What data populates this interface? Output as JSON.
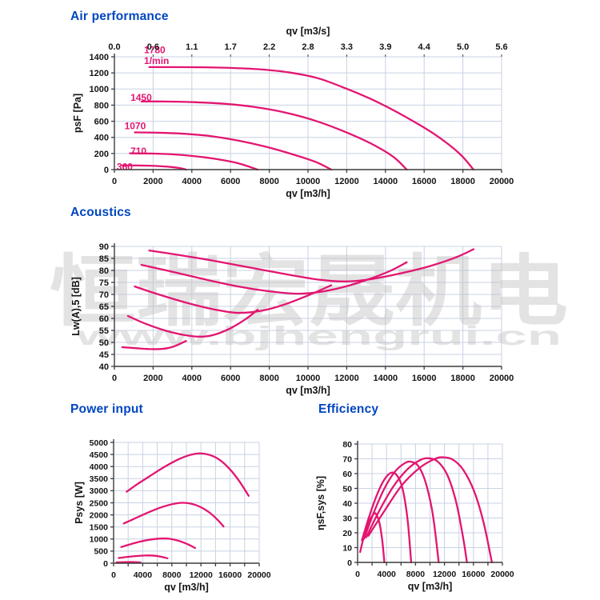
{
  "page": {
    "background": "#ffffff"
  },
  "colors": {
    "title_blue": "#0046c0",
    "curve_pink": "#e31570",
    "grid": "#c8d2e4",
    "axis": "#3c3c3c",
    "text": "#141414",
    "watermark_gray": "#c2c2c2"
  },
  "watermark": {
    "cjk_text": "恒瑞宏晟机电",
    "url_text": "www.bjhengrui.cn"
  },
  "chart_data": [
    {
      "id": "air",
      "type": "line",
      "title": "Air performance",
      "xlabel": "qv [m3/h]",
      "x2label": "qv [m3/s]",
      "ylabel": "psF [Pa]",
      "xlim": [
        0,
        20000
      ],
      "ylim": [
        0,
        1400
      ],
      "ytick_step": 200,
      "xgrid_step": 2000,
      "xlabel_step": 2000,
      "x2labels": [
        "0.0",
        "0.6",
        "1.1",
        "1.7",
        "2.2",
        "2.8",
        "3.3",
        "3.9",
        "4.4",
        "5.0",
        "5.6"
      ],
      "grid": true,
      "series": [
        {
          "name": "1780",
          "points": [
            [
              1800,
              1272
            ],
            [
              3000,
              1272
            ],
            [
              4500,
              1270
            ],
            [
              6000,
              1262
            ],
            [
              7500,
              1245
            ],
            [
              9000,
              1207
            ],
            [
              10500,
              1135
            ],
            [
              12000,
              1003
            ],
            [
              13500,
              848
            ],
            [
              15000,
              660
            ],
            [
              16500,
              445
            ],
            [
              17800,
              205
            ],
            [
              18550,
              0
            ]
          ]
        },
        {
          "name": "1450",
          "points": [
            [
              1400,
              845
            ],
            [
              2600,
              845
            ],
            [
              4200,
              836
            ],
            [
              5800,
              815
            ],
            [
              7200,
              778
            ],
            [
              8700,
              715
            ],
            [
              10200,
              620
            ],
            [
              11700,
              490
            ],
            [
              13200,
              330
            ],
            [
              14400,
              160
            ],
            [
              15100,
              0
            ]
          ]
        },
        {
          "name": "1070",
          "points": [
            [
              1050,
              462
            ],
            [
              2200,
              458
            ],
            [
              3600,
              445
            ],
            [
              5000,
              415
            ],
            [
              6400,
              360
            ],
            [
              7800,
              285
            ],
            [
              9200,
              190
            ],
            [
              10400,
              95
            ],
            [
              11200,
              0
            ]
          ]
        },
        {
          "name": "710",
          "points": [
            [
              800,
              202
            ],
            [
              1800,
              200
            ],
            [
              3000,
              190
            ],
            [
              4200,
              165
            ],
            [
              5300,
              130
            ],
            [
              6400,
              78
            ],
            [
              7400,
              0
            ]
          ]
        },
        {
          "name": "360",
          "points": [
            [
              400,
              52
            ],
            [
              1300,
              51
            ],
            [
              2100,
              46
            ],
            [
              2900,
              33
            ],
            [
              3400,
              17
            ],
            [
              3700,
              0
            ]
          ]
        }
      ],
      "curve_labels": [
        {
          "text": "1780",
          "x": 1530,
          "y": 1485
        },
        {
          "text": "1/min",
          "x": 1530,
          "y": 1350
        },
        {
          "text": "1450",
          "x": 830,
          "y": 895
        },
        {
          "text": "1070",
          "x": 520,
          "y": 540
        },
        {
          "text": "710",
          "x": 830,
          "y": 230
        },
        {
          "text": "360",
          "x": 120,
          "y": 35
        }
      ]
    },
    {
      "id": "ac",
      "type": "line",
      "title": "Acoustics",
      "xlabel": "qv [m3/h]",
      "ylabel": "Lw(A),5 [dB]",
      "xlim": [
        0,
        20000
      ],
      "ylim": [
        40,
        90
      ],
      "ytick_step": 5,
      "xgrid_step": 2000,
      "xlabel_step": 2000,
      "grid": true,
      "watermark": true,
      "series": [
        {
          "name": "1780",
          "points": [
            [
              1800,
              88.3
            ],
            [
              3200,
              86.6
            ],
            [
              5000,
              84.2
            ],
            [
              7000,
              81.2
            ],
            [
              9000,
              78.2
            ],
            [
              10600,
              76.1
            ],
            [
              11900,
              75.4
            ],
            [
              13200,
              76.3
            ],
            [
              14800,
              78.8
            ],
            [
              16300,
              81.8
            ],
            [
              17600,
              85.3
            ],
            [
              18550,
              88.8
            ]
          ]
        },
        {
          "name": "1450",
          "points": [
            [
              1400,
              82.3
            ],
            [
              2800,
              79.8
            ],
            [
              4600,
              76.4
            ],
            [
              6400,
              73.3
            ],
            [
              8000,
              71.3
            ],
            [
              9400,
              70.3
            ],
            [
              10600,
              71.0
            ],
            [
              11900,
              73.2
            ],
            [
              13200,
              76.5
            ],
            [
              14300,
              80.0
            ],
            [
              15100,
              83.4
            ]
          ]
        },
        {
          "name": "1070",
          "points": [
            [
              1050,
              73.3
            ],
            [
              2200,
              70.2
            ],
            [
              3600,
              66.8
            ],
            [
              5000,
              64.0
            ],
            [
              6200,
              62.4
            ],
            [
              7100,
              62.6
            ],
            [
              8000,
              63.9
            ],
            [
              9000,
              66.4
            ],
            [
              10100,
              69.9
            ],
            [
              11200,
              73.8
            ]
          ]
        },
        {
          "name": "710",
          "points": [
            [
              700,
              61.0
            ],
            [
              1600,
              57.8
            ],
            [
              2600,
              55.0
            ],
            [
              3600,
              53.1
            ],
            [
              4500,
              52.4
            ],
            [
              5200,
              53.3
            ],
            [
              6000,
              55.9
            ],
            [
              6800,
              59.8
            ],
            [
              7400,
              63.6
            ]
          ]
        },
        {
          "name": "360",
          "points": [
            [
              400,
              48.0
            ],
            [
              1100,
              47.6
            ],
            [
              1900,
              47.2
            ],
            [
              2600,
              47.4
            ],
            [
              3100,
              48.4
            ],
            [
              3700,
              50.6
            ]
          ]
        }
      ]
    },
    {
      "id": "power",
      "type": "line",
      "title": "Power input",
      "xlabel": "qv [m3/h]",
      "ylabel": "Psys [W]",
      "xlim": [
        0,
        20000
      ],
      "ylim": [
        0,
        5000
      ],
      "ytick_step": 500,
      "xgrid_step": 2000,
      "xlabel_step": 4000,
      "grid": true,
      "series": [
        {
          "name": "1780",
          "points": [
            [
              1800,
              2960
            ],
            [
              3200,
              3260
            ],
            [
              5000,
              3610
            ],
            [
              7000,
              3990
            ],
            [
              9000,
              4310
            ],
            [
              10500,
              4480
            ],
            [
              11800,
              4545
            ],
            [
              13200,
              4480
            ],
            [
              14600,
              4270
            ],
            [
              16000,
              3880
            ],
            [
              17300,
              3380
            ],
            [
              18550,
              2790
            ]
          ]
        },
        {
          "name": "1450",
          "points": [
            [
              1400,
              1645
            ],
            [
              2800,
              1835
            ],
            [
              4600,
              2080
            ],
            [
              6400,
              2300
            ],
            [
              8000,
              2440
            ],
            [
              9400,
              2500
            ],
            [
              10600,
              2465
            ],
            [
              11900,
              2330
            ],
            [
              13200,
              2090
            ],
            [
              14300,
              1790
            ],
            [
              15100,
              1520
            ]
          ]
        },
        {
          "name": "1070",
          "points": [
            [
              1050,
              670
            ],
            [
              2200,
              775
            ],
            [
              3600,
              890
            ],
            [
              5000,
              975
            ],
            [
              6400,
              1020
            ],
            [
              7600,
              1015
            ],
            [
              8800,
              940
            ],
            [
              10000,
              810
            ],
            [
              11200,
              630
            ]
          ]
        },
        {
          "name": "710",
          "points": [
            [
              700,
              215
            ],
            [
              1800,
              258
            ],
            [
              3000,
              293
            ],
            [
              4300,
              318
            ],
            [
              5300,
              316
            ],
            [
              6300,
              283
            ],
            [
              7400,
              205
            ]
          ]
        },
        {
          "name": "360",
          "points": [
            [
              400,
              36
            ],
            [
              1500,
              46
            ],
            [
              2500,
              48
            ],
            [
              3200,
              42
            ],
            [
              3700,
              30
            ]
          ]
        }
      ]
    },
    {
      "id": "eff",
      "type": "line",
      "title": "Efficiency",
      "xlabel": "qv [m3/h]",
      "ylabel": "ηsF,sys [%]",
      "xlim": [
        0,
        20000
      ],
      "ylim": [
        0,
        80
      ],
      "ytick_step": 10,
      "xgrid_step": 2000,
      "xlabel_step": 4000,
      "grid": true,
      "series": [
        {
          "name": "360",
          "points": [
            [
              350,
              7
            ],
            [
              900,
              18
            ],
            [
              1500,
              27
            ],
            [
              2100,
              32
            ],
            [
              2500,
              33
            ],
            [
              3000,
              27
            ],
            [
              3400,
              15
            ],
            [
              3700,
              0
            ]
          ]
        },
        {
          "name": "710",
          "points": [
            [
              600,
              15
            ],
            [
              1600,
              31
            ],
            [
              2700,
              46
            ],
            [
              3700,
              56
            ],
            [
              4600,
              60.5
            ],
            [
              5400,
              59
            ],
            [
              6200,
              50
            ],
            [
              6900,
              29
            ],
            [
              7400,
              0
            ]
          ]
        },
        {
          "name": "1070",
          "points": [
            [
              900,
              16
            ],
            [
              2100,
              32
            ],
            [
              3600,
              49
            ],
            [
              5100,
              61
            ],
            [
              6500,
              67
            ],
            [
              7400,
              68
            ],
            [
              8400,
              65
            ],
            [
              9400,
              54
            ],
            [
              10400,
              32
            ],
            [
              11200,
              0
            ]
          ]
        },
        {
          "name": "1450",
          "points": [
            [
              1200,
              17
            ],
            [
              2900,
              34
            ],
            [
              4900,
              51
            ],
            [
              6900,
              63
            ],
            [
              8700,
              69.3
            ],
            [
              9900,
              70.3
            ],
            [
              11100,
              68
            ],
            [
              12400,
              59
            ],
            [
              13600,
              41
            ],
            [
              14600,
              16
            ],
            [
              15100,
              0
            ]
          ]
        },
        {
          "name": "1780",
          "points": [
            [
              1500,
              18
            ],
            [
              3600,
              34
            ],
            [
              6100,
              52
            ],
            [
              8600,
              64
            ],
            [
              10700,
              70
            ],
            [
              11900,
              71
            ],
            [
              13200,
              69.3
            ],
            [
              14600,
              62.5
            ],
            [
              16100,
              48
            ],
            [
              17400,
              27
            ],
            [
              18550,
              0
            ]
          ]
        }
      ]
    }
  ]
}
